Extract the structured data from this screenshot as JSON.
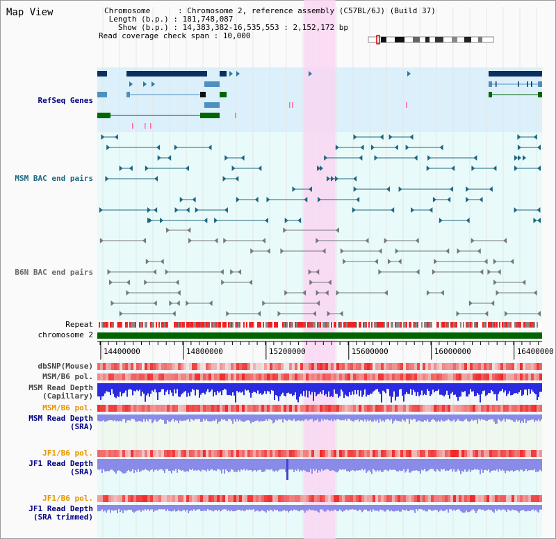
{
  "header": {
    "title": "Map View",
    "chromosome_line": "Chromosome      : Chromosome 2, reference assembly (C57BL/6J) (Build 37)",
    "length_line": " Length (b.p.) : 181,748,087",
    "show_line": "   Show (b.p.) : 14,383,382-16,535,553 : 2,152,172 bp",
    "coverage_line": "Read coverage check span : 10,000"
  },
  "tracks": {
    "refseq": "RefSeq Genes",
    "msm_bac": "MSM BAC end pairs",
    "b6n_bac": "B6N BAC end pairs",
    "repeat": "Repeat",
    "chromosome": "chromosome 2",
    "dbsnp": "dbSNP(Mouse)",
    "msm_b6_pol_1": "MSM/B6 pol.",
    "msm_depth_cap_1": "MSM Read Depth",
    "msm_depth_cap_2": "(Capillary)",
    "msm_b6_pol_2": "MSM/B6 pol.",
    "msm_depth_sra_1": "MSM Read Depth",
    "msm_depth_sra_2": "(SRA)",
    "jf1_b6_pol_1": "JF1/B6 pol.",
    "jf1_depth_sra_1": "JF1 Read Depth",
    "jf1_depth_sra_2": "(SRA)",
    "jf1_b6_pol_2": "JF1/B6 pol.",
    "jf1_depth_trim_1": "JF1 Read Depth",
    "jf1_depth_trim_2": "(SRA trimmed)"
  },
  "axis": {
    "start": 14383382,
    "end": 16535553,
    "ticks": [
      "14400000",
      "14800000",
      "15200000",
      "15600000",
      "16000000",
      "16400000"
    ],
    "highlight_start": 15383382,
    "highlight_end": 15535553
  },
  "colors": {
    "refseq_bg": "#dbf0fa",
    "bac_bg": "#e8fafa",
    "highlight": "#f9d6f2",
    "gene_dark": "#0b2f5e",
    "gene_green": "#006600",
    "msm_bac": "#1e6680",
    "b6n_bac": "#777777",
    "chromosome": "#006400",
    "depth_cap": "#2a2ae0",
    "depth_sra": "#8a8ae8",
    "label_blue": "#000080",
    "label_orange": "#e69500",
    "label_gray": "#444444",
    "label_teal": "#1e6680"
  }
}
